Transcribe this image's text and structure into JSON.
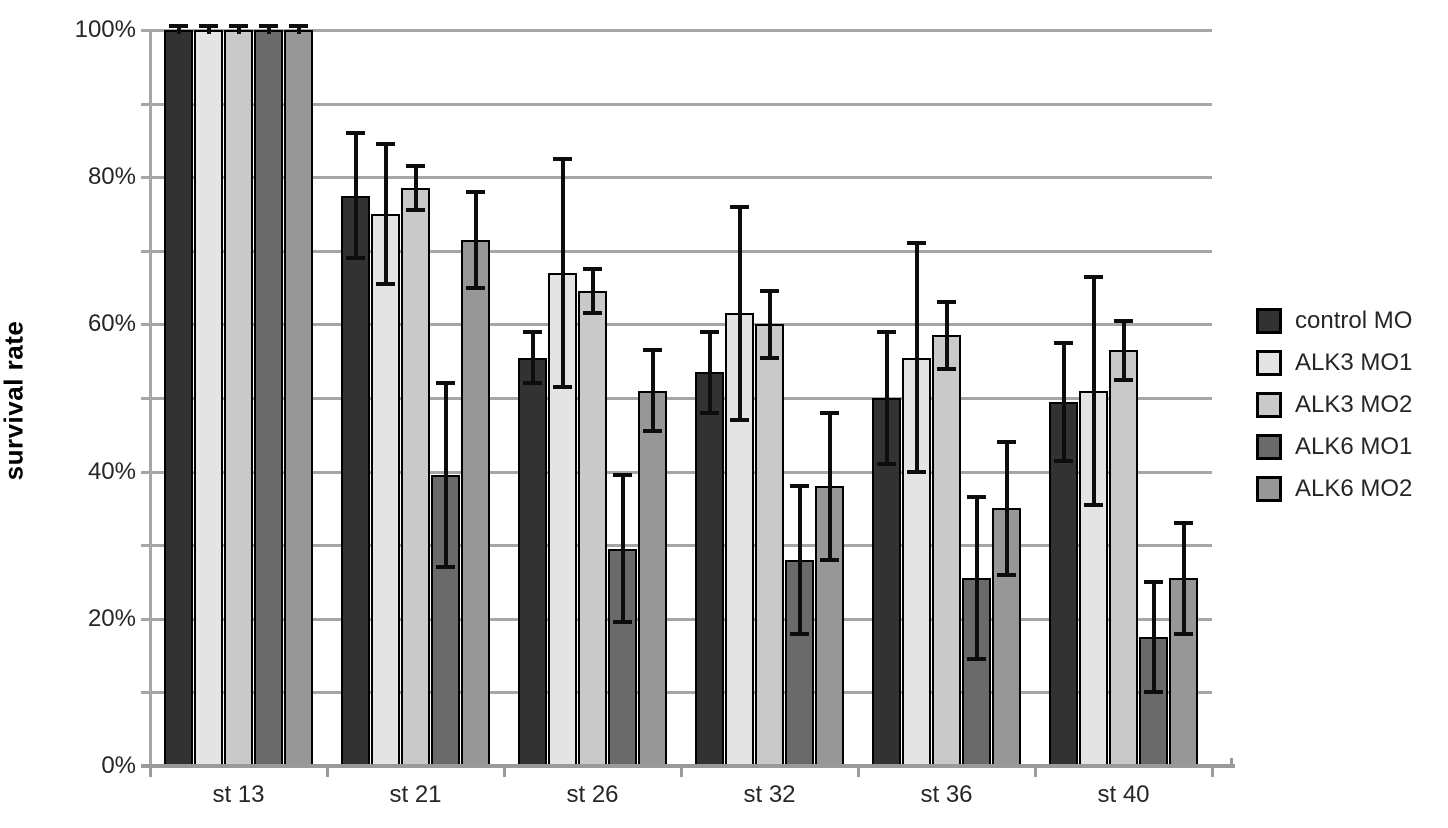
{
  "chart_data": {
    "type": "bar",
    "title": "",
    "xlabel": "",
    "ylabel": "survival rate",
    "categories": [
      "st 13",
      "st 21",
      "st 26",
      "st 32",
      "st 36",
      "st 40"
    ],
    "y_ticks": [
      "0%",
      "20%",
      "40%",
      "60%",
      "80%",
      "100%"
    ],
    "ylim": [
      0,
      100
    ],
    "grid_step": 10,
    "grid_on": true,
    "legend_position": "right",
    "error_bars": true,
    "series": [
      {
        "name": "control MO",
        "color": "#323232",
        "values": [
          100,
          77.5,
          55.5,
          53.5,
          50,
          49.5
        ],
        "errors": [
          0.5,
          8.5,
          3.5,
          5.5,
          9,
          8
        ]
      },
      {
        "name": "ALK3 MO1",
        "color": "#e4e4e4",
        "values": [
          100,
          75,
          67,
          61.5,
          55.5,
          51
        ],
        "errors": [
          0.5,
          9.5,
          15.5,
          14.5,
          15.5,
          15.5
        ]
      },
      {
        "name": "ALK3 MO2",
        "color": "#c9c9c9",
        "values": [
          100,
          78.5,
          64.5,
          60,
          58.5,
          56.5
        ],
        "errors": [
          0.5,
          3,
          3,
          4.5,
          4.5,
          4
        ]
      },
      {
        "name": "ALK6 MO1",
        "color": "#6a6a6a",
        "values": [
          100,
          39.5,
          29.5,
          28,
          25.5,
          17.5
        ],
        "errors": [
          0.5,
          12.5,
          10,
          10,
          11,
          7.5
        ]
      },
      {
        "name": "ALK6 MO2",
        "color": "#979797",
        "values": [
          100,
          71.5,
          51,
          38,
          35,
          25.5
        ],
        "errors": [
          0.5,
          6.5,
          5.5,
          10,
          9,
          7.5
        ]
      }
    ],
    "colors": {
      "gridline": "#a6a6a6",
      "axis": "#9a9a9a",
      "error_bar": "#0d0d0d",
      "text": "#262626",
      "background": "#ffffff"
    }
  }
}
